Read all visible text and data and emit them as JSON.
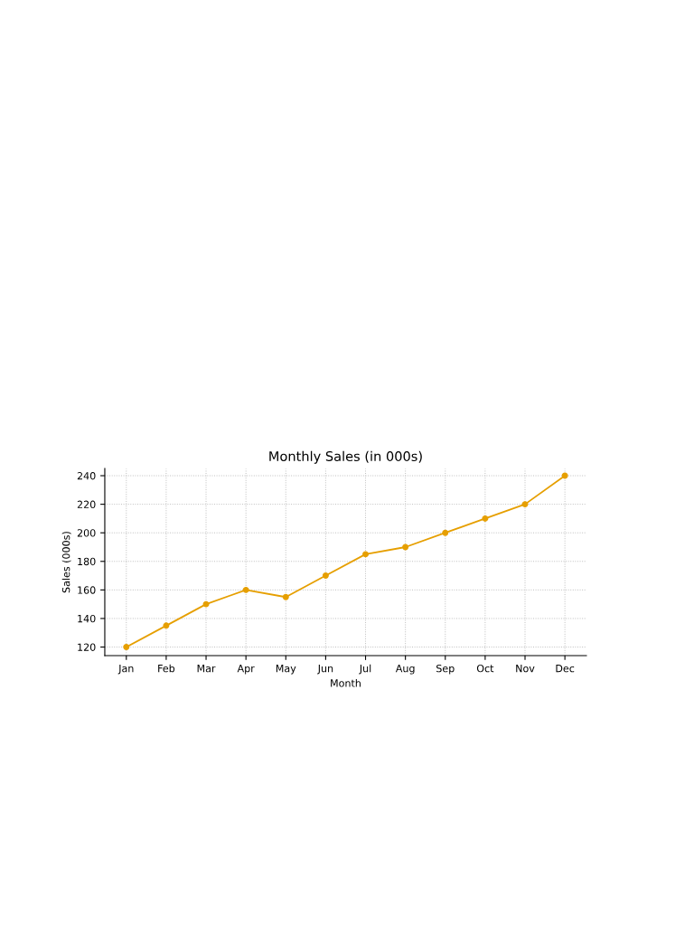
{
  "chart_data": {
    "type": "line",
    "title": "Monthly Sales (in 000s)",
    "xlabel": "Month",
    "ylabel": "Sales (000s)",
    "categories": [
      "Jan",
      "Feb",
      "Mar",
      "Apr",
      "May",
      "Jun",
      "Jul",
      "Aug",
      "Sep",
      "Oct",
      "Nov",
      "Dec"
    ],
    "series": [
      {
        "color": "#e69f00",
        "values": [
          120,
          135,
          150,
          160,
          155,
          170,
          185,
          190,
          200,
          210,
          220,
          240
        ]
      }
    ],
    "ylim": [
      114,
      245
    ],
    "yticks": [
      120,
      140,
      160,
      180,
      200,
      220,
      240
    ],
    "grid": true,
    "marker": "circle",
    "line_style": "solid"
  }
}
